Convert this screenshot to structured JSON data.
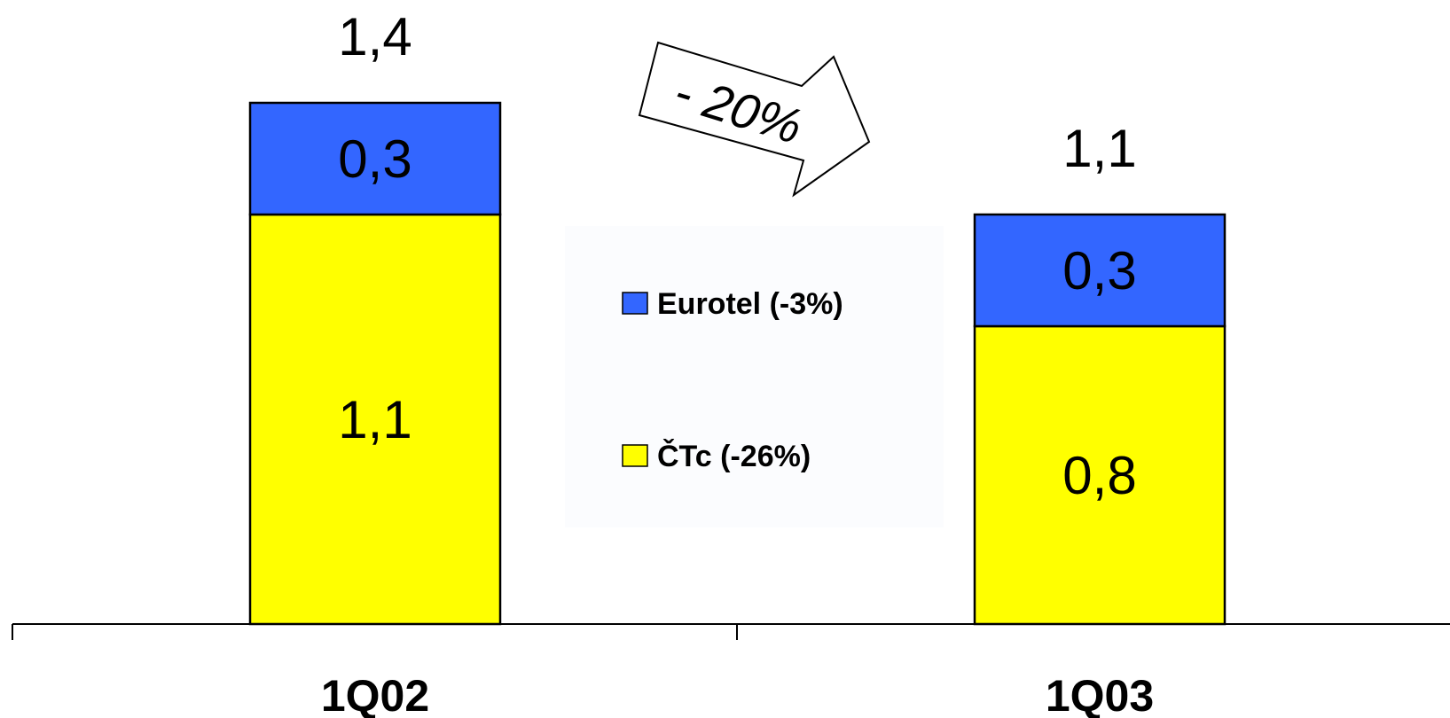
{
  "chart_data": {
    "type": "bar",
    "stacked": true,
    "categories": [
      "1Q02",
      "1Q03"
    ],
    "series": [
      {
        "name": "ČTc (-26%)",
        "values": [
          1.1,
          0.8
        ],
        "color": "#ffff00"
      },
      {
        "name": "Eurotel (-3%)",
        "values": [
          0.3,
          0.3
        ],
        "color": "#3366ff"
      }
    ],
    "value_labels": [
      [
        "1,1",
        "0,8"
      ],
      [
        "0,3",
        "0,3"
      ]
    ],
    "totals": [
      "1,4",
      "1,1"
    ],
    "total_values": [
      1.4,
      1.1
    ],
    "annotation": "- 20%",
    "legend": {
      "placement": "center",
      "items": [
        {
          "label": "Eurotel (-3%)",
          "color": "#3366ff"
        },
        {
          "label": "ČTc (-26%)",
          "color": "#ffff00"
        }
      ]
    },
    "ylim": [
      0,
      1.4
    ],
    "grid": false
  }
}
